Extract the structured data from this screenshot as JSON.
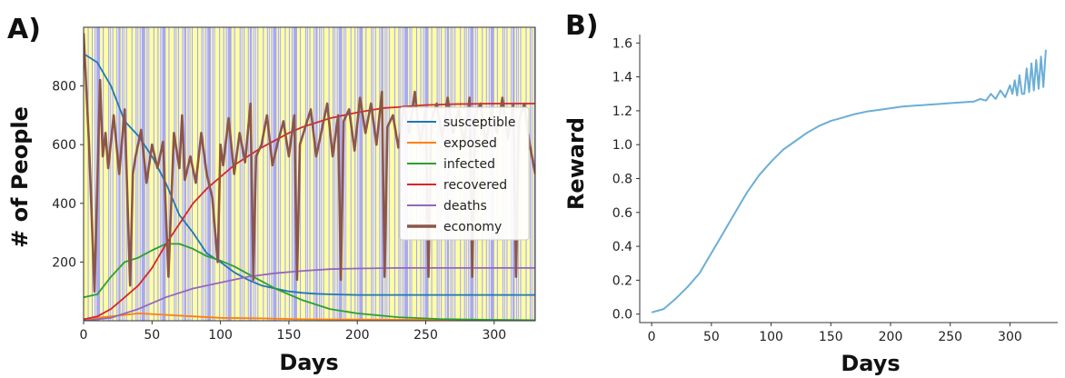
{
  "panels": {
    "a_label": "A)",
    "b_label": "B)"
  },
  "chart_data": [
    {
      "type": "line",
      "panel": "A)",
      "xlabel": "Days",
      "ylabel": "# of People",
      "xlim": [
        0,
        330
      ],
      "ylim": [
        0,
        1000
      ],
      "xticks": [
        0,
        50,
        100,
        150,
        200,
        250,
        300
      ],
      "yticks": [
        200,
        400,
        600,
        800
      ],
      "legend_position": "right",
      "background": "alternating yellow and blue day bands (lockdown policy)",
      "band_colors": {
        "open": "#ffff9e",
        "lockdown": "#a9a9ee"
      },
      "series": [
        {
          "name": "susceptible",
          "color": "#1f77b4",
          "x": [
            0,
            10,
            20,
            30,
            40,
            50,
            60,
            70,
            80,
            90,
            100,
            110,
            120,
            130,
            140,
            150,
            160,
            170,
            180,
            200,
            230,
            260,
            300,
            330
          ],
          "y": [
            910,
            880,
            800,
            680,
            630,
            560,
            470,
            360,
            300,
            230,
            200,
            165,
            140,
            120,
            110,
            100,
            95,
            92,
            90,
            88,
            88,
            88,
            88,
            88
          ]
        },
        {
          "name": "exposed",
          "color": "#ff7f0e",
          "x": [
            0,
            20,
            40,
            60,
            80,
            100,
            130,
            160,
            200,
            250,
            330
          ],
          "y": [
            5,
            15,
            25,
            20,
            15,
            10,
            8,
            5,
            4,
            3,
            2
          ]
        },
        {
          "name": "infected",
          "color": "#2ca02c",
          "x": [
            0,
            10,
            20,
            30,
            40,
            50,
            60,
            70,
            80,
            90,
            100,
            110,
            120,
            140,
            160,
            180,
            200,
            230,
            260,
            300,
            330
          ],
          "y": [
            80,
            90,
            150,
            200,
            215,
            240,
            262,
            262,
            245,
            220,
            205,
            185,
            160,
            110,
            70,
            40,
            25,
            12,
            6,
            3,
            2
          ]
        },
        {
          "name": "recovered",
          "color": "#d62728",
          "x": [
            0,
            10,
            20,
            30,
            40,
            50,
            60,
            70,
            80,
            90,
            100,
            110,
            120,
            130,
            140,
            150,
            160,
            170,
            180,
            190,
            200,
            210,
            220,
            230,
            240,
            250,
            270,
            300,
            330
          ],
          "y": [
            5,
            15,
            40,
            80,
            120,
            180,
            260,
            330,
            400,
            450,
            490,
            530,
            560,
            590,
            615,
            640,
            660,
            675,
            690,
            700,
            710,
            718,
            725,
            728,
            732,
            735,
            738,
            740,
            740
          ]
        },
        {
          "name": "deaths",
          "color": "#9467bd",
          "x": [
            0,
            20,
            40,
            60,
            80,
            100,
            120,
            140,
            160,
            180,
            200,
            230,
            260,
            300,
            330
          ],
          "y": [
            0,
            10,
            40,
            80,
            110,
            130,
            150,
            162,
            170,
            176,
            178,
            180,
            180,
            180,
            180
          ]
        },
        {
          "name": "economy",
          "color": "#8c564b",
          "x": [
            0,
            4,
            8,
            12,
            14,
            16,
            18,
            22,
            26,
            30,
            34,
            36,
            38,
            42,
            46,
            50,
            54,
            58,
            62,
            66,
            70,
            72,
            74,
            78,
            82,
            86,
            90,
            94,
            98,
            100,
            102,
            106,
            110,
            114,
            118,
            122,
            124,
            126,
            130,
            134,
            138,
            142,
            146,
            150,
            154,
            156,
            158,
            162,
            166,
            170,
            174,
            178,
            182,
            186,
            188,
            190,
            194,
            198,
            202,
            206,
            210,
            214,
            218,
            220,
            222,
            226,
            230,
            234,
            238,
            242,
            246,
            250,
            252,
            254,
            258,
            262,
            266,
            270,
            274,
            278,
            282,
            284,
            286,
            290,
            294,
            298,
            302,
            306,
            310,
            314,
            316,
            318,
            322,
            326,
            330
          ],
          "y": [
            980,
            600,
            100,
            820,
            560,
            640,
            520,
            700,
            500,
            720,
            120,
            500,
            560,
            650,
            470,
            600,
            520,
            610,
            150,
            640,
            520,
            700,
            480,
            560,
            470,
            640,
            500,
            420,
            200,
            600,
            530,
            690,
            500,
            640,
            540,
            740,
            140,
            560,
            600,
            700,
            530,
            610,
            680,
            560,
            700,
            140,
            600,
            660,
            720,
            560,
            650,
            740,
            560,
            700,
            140,
            680,
            720,
            580,
            760,
            640,
            740,
            600,
            780,
            150,
            660,
            700,
            590,
            730,
            640,
            780,
            600,
            720,
            150,
            680,
            740,
            620,
            760,
            640,
            720,
            600,
            760,
            150,
            700,
            740,
            600,
            720,
            640,
            760,
            620,
            740,
            150,
            680,
            740,
            600,
            500
          ]
        }
      ]
    },
    {
      "type": "line",
      "panel": "B)",
      "xlabel": "Days",
      "ylabel": "Reward",
      "xlim": [
        -10,
        340
      ],
      "ylim": [
        -0.05,
        1.65
      ],
      "xticks": [
        0,
        50,
        100,
        150,
        200,
        250,
        300
      ],
      "yticks": [
        0.0,
        0.2,
        0.4,
        0.6,
        0.8,
        1.0,
        1.2,
        1.4,
        1.6
      ],
      "ytick_labels": [
        "0.0",
        "0.2",
        "0.4",
        "0.6",
        "0.8",
        "1.0",
        "1.2",
        "1.4",
        "1.6"
      ],
      "series": [
        {
          "color": "#6baed6",
          "x": [
            0,
            10,
            20,
            30,
            40,
            50,
            60,
            70,
            80,
            90,
            100,
            110,
            120,
            130,
            140,
            150,
            160,
            170,
            180,
            190,
            200,
            210,
            220,
            230,
            240,
            250,
            260,
            270,
            275,
            280,
            284,
            288,
            292,
            296,
            300,
            302,
            304,
            306,
            308,
            310,
            312,
            314,
            316,
            318,
            320,
            322,
            324,
            326,
            328,
            330
          ],
          "y": [
            0.01,
            0.03,
            0.09,
            0.16,
            0.24,
            0.36,
            0.48,
            0.6,
            0.72,
            0.82,
            0.9,
            0.97,
            1.02,
            1.07,
            1.11,
            1.14,
            1.16,
            1.18,
            1.195,
            1.205,
            1.215,
            1.225,
            1.23,
            1.235,
            1.24,
            1.245,
            1.25,
            1.255,
            1.27,
            1.26,
            1.3,
            1.27,
            1.32,
            1.28,
            1.35,
            1.3,
            1.38,
            1.29,
            1.41,
            1.3,
            1.3,
            1.45,
            1.31,
            1.48,
            1.32,
            1.5,
            1.33,
            1.52,
            1.34,
            1.56
          ]
        }
      ]
    }
  ]
}
